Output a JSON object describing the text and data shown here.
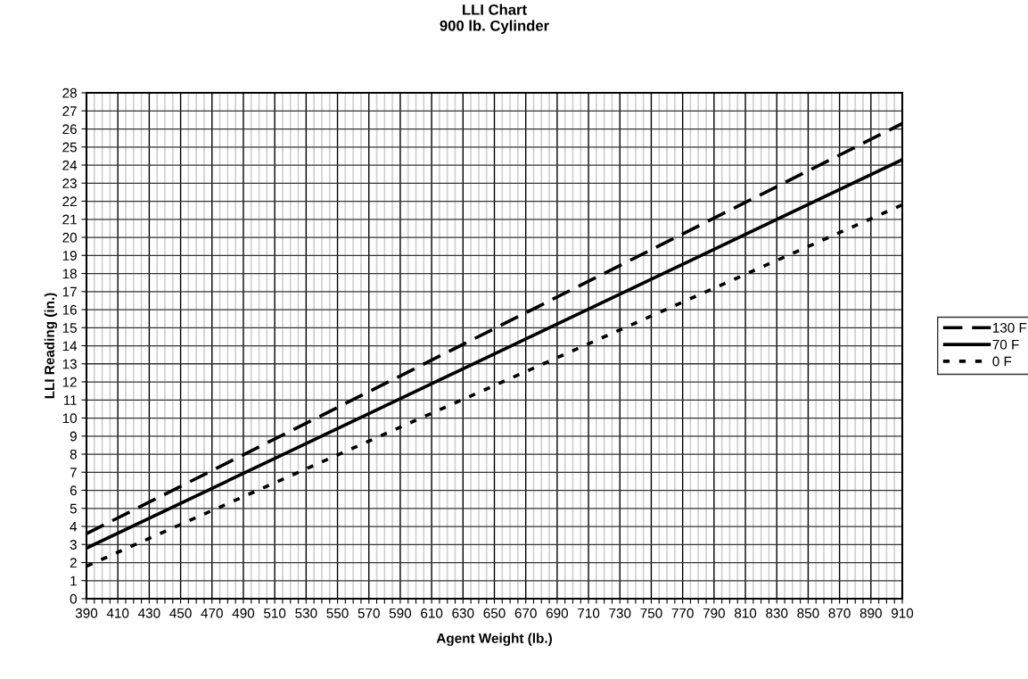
{
  "chart_data": {
    "type": "line",
    "title": "LLI Chart\n900 lb. Cylinder",
    "xlabel": "Agent Weight (lb.)",
    "ylabel": "LLI Reading (in.)",
    "xlim": [
      390,
      910
    ],
    "ylim": [
      0,
      28
    ],
    "xticks": [
      390,
      {
        "value": 395,
        "label": null
      },
      {
        "value": 400,
        "label": null
      },
      {
        "value": 405,
        "label": null
      },
      410,
      {
        "value": 415,
        "label": null
      },
      {
        "value": 420,
        "label": null
      },
      {
        "value": 425,
        "label": null
      },
      430,
      {
        "value": 435,
        "label": null
      },
      {
        "value": 440,
        "label": null
      },
      {
        "value": 445,
        "label": null
      },
      450,
      {
        "value": 455,
        "label": null
      },
      {
        "value": 460,
        "label": null
      },
      {
        "value": 465,
        "label": null
      },
      470,
      {
        "value": 475,
        "label": null
      },
      {
        "value": 480,
        "label": null
      },
      {
        "value": 485,
        "label": null
      },
      490,
      {
        "value": 495,
        "label": null
      },
      {
        "value": 500,
        "label": null
      },
      {
        "value": 505,
        "label": null
      },
      510,
      {
        "value": 515,
        "label": null
      },
      {
        "value": 520,
        "label": null
      },
      {
        "value": 525,
        "label": null
      },
      530,
      {
        "value": 535,
        "label": null
      },
      {
        "value": 540,
        "label": null
      },
      {
        "value": 545,
        "label": null
      },
      550,
      {
        "value": 555,
        "label": null
      },
      {
        "value": 560,
        "label": null
      },
      {
        "value": 565,
        "label": null
      },
      570,
      {
        "value": 575,
        "label": null
      },
      {
        "value": 580,
        "label": null
      },
      {
        "value": 585,
        "label": null
      },
      590,
      {
        "value": 595,
        "label": null
      },
      {
        "value": 600,
        "label": null
      },
      {
        "value": 605,
        "label": null
      },
      610,
      {
        "value": 615,
        "label": null
      },
      {
        "value": 620,
        "label": null
      },
      {
        "value": 625,
        "label": null
      },
      630,
      {
        "value": 635,
        "label": null
      },
      {
        "value": 640,
        "label": null
      },
      {
        "value": 645,
        "label": null
      },
      650,
      {
        "value": 655,
        "label": null
      },
      {
        "value": 660,
        "label": null
      },
      {
        "value": 665,
        "label": null
      },
      670,
      {
        "value": 675,
        "label": null
      },
      {
        "value": 680,
        "label": null
      },
      {
        "value": 685,
        "label": null
      },
      690,
      {
        "value": 695,
        "label": null
      },
      {
        "value": 700,
        "label": null
      },
      {
        "value": 705,
        "label": null
      },
      710,
      {
        "value": 715,
        "label": null
      },
      {
        "value": 720,
        "label": null
      },
      {
        "value": 725,
        "label": null
      },
      730,
      {
        "value": 735,
        "label": null
      },
      {
        "value": 740,
        "label": null
      },
      {
        "value": 745,
        "label": null
      },
      750,
      {
        "value": 755,
        "label": null
      },
      {
        "value": 760,
        "label": null
      },
      {
        "value": 765,
        "label": null
      },
      770,
      {
        "value": 775,
        "label": null
      },
      {
        "value": 780,
        "label": null
      },
      {
        "value": 785,
        "label": null
      },
      790,
      {
        "value": 795,
        "label": null
      },
      {
        "value": 800,
        "label": null
      },
      {
        "value": 805,
        "label": null
      },
      810,
      {
        "value": 815,
        "label": null
      },
      {
        "value": 820,
        "label": null
      },
      {
        "value": 825,
        "label": null
      },
      830,
      {
        "value": 835,
        "label": null
      },
      {
        "value": 840,
        "label": null
      },
      {
        "value": 845,
        "label": null
      },
      850,
      {
        "value": 855,
        "label": null
      },
      {
        "value": 860,
        "label": null
      },
      {
        "value": 865,
        "label": null
      },
      870,
      {
        "value": 875,
        "label": null
      },
      {
        "value": 880,
        "label": null
      },
      {
        "value": 885,
        "label": null
      },
      890,
      {
        "value": 895,
        "label": null
      },
      {
        "value": 900,
        "label": null
      },
      {
        "value": 905,
        "label": null
      },
      910
    ],
    "yticks": [
      0,
      1,
      2,
      3,
      4,
      5,
      6,
      7,
      8,
      9,
      10,
      11,
      12,
      13,
      14,
      15,
      16,
      17,
      18,
      19,
      20,
      21,
      22,
      23,
      24,
      25,
      26,
      27,
      28
    ],
    "grid": true,
    "legend": "right",
    "marker": "none",
    "x": [
      390,
      910
    ],
    "series": [
      {
        "name": "130 F",
        "color": "#000000",
        "line_style": "dashed",
        "values": [
          3.6,
          26.3
        ]
      },
      {
        "name": "70 F",
        "color": "#000000",
        "line_style": "solid",
        "values": [
          2.8,
          24.3
        ]
      },
      {
        "name": "0 F",
        "color": "#000000",
        "line_style": "dotted",
        "values": [
          1.8,
          21.8
        ]
      }
    ]
  }
}
